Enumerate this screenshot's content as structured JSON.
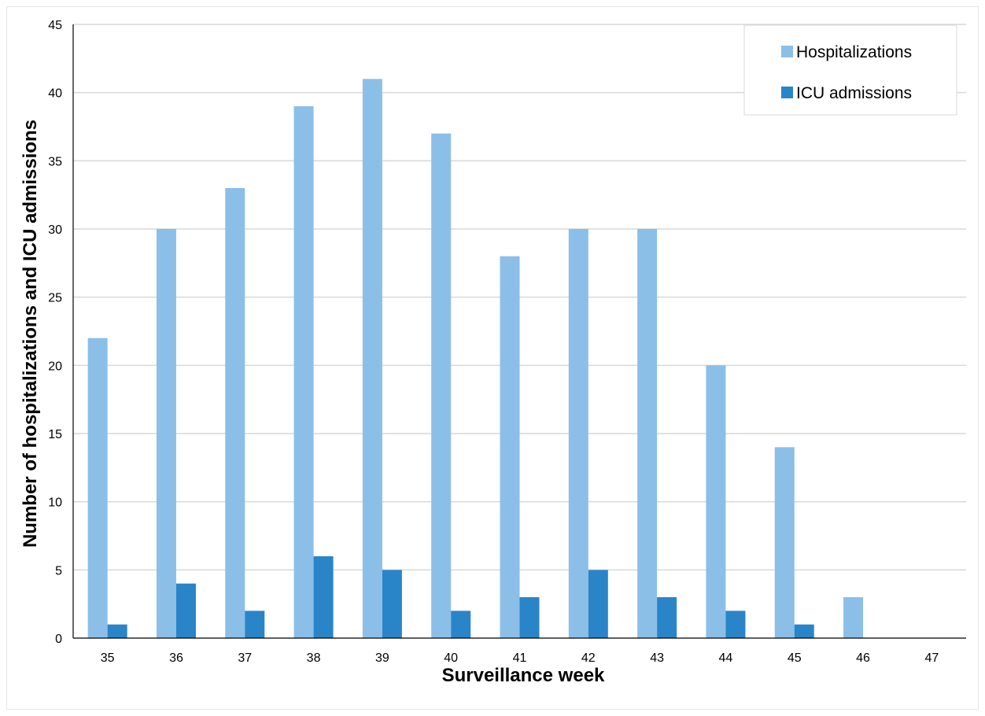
{
  "chart_data": {
    "type": "bar",
    "categories": [
      "35",
      "36",
      "37",
      "38",
      "39",
      "40",
      "41",
      "42",
      "43",
      "44",
      "45",
      "46",
      "47"
    ],
    "series": [
      {
        "name": "Hospitalizations",
        "values": [
          22,
          30,
          33,
          39,
          41,
          37,
          28,
          30,
          30,
          20,
          14,
          3,
          0
        ],
        "color": "#8bbfe8"
      },
      {
        "name": "ICU admissions",
        "values": [
          1,
          4,
          2,
          6,
          5,
          2,
          3,
          5,
          3,
          2,
          1,
          0,
          0
        ],
        "color": "#2a84c8"
      }
    ],
    "xlabel": "Surveillance week",
    "ylabel": "Number of  hospitalizations and ICU admissions",
    "ylim": [
      0,
      45
    ],
    "yticks": [
      0,
      5,
      10,
      15,
      20,
      25,
      30,
      35,
      40,
      45
    ],
    "grid": true,
    "legend_position": "top-right",
    "gridline_color": "#d9d9d9"
  }
}
